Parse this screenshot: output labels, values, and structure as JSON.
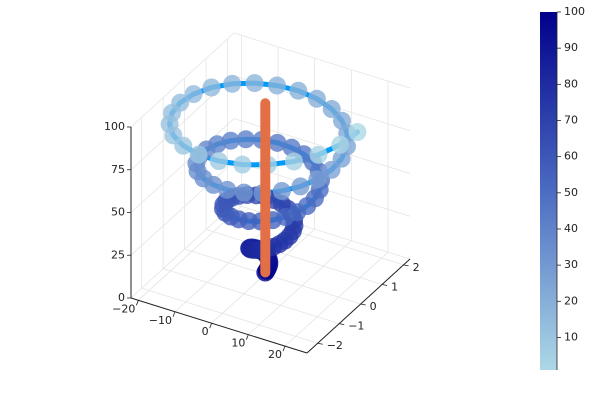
{
  "chart_data": {
    "type": "line3d",
    "xlim": [
      -22,
      26
    ],
    "ylim": [
      -2.5,
      2.3
    ],
    "zlim": [
      0,
      100
    ],
    "xticks": [
      {
        "value": -20,
        "label": "−20"
      },
      {
        "value": -10,
        "label": "−10"
      },
      0,
      10,
      20
    ],
    "yticks": [
      {
        "value": -2,
        "label": "−2"
      },
      {
        "value": -1,
        "label": "−1"
      },
      0,
      1,
      2
    ],
    "zticks": [
      0,
      25,
      50,
      75,
      100
    ],
    "grid": true,
    "colormap": [
      "#add8e6",
      "#4b6cc2",
      "#00008b"
    ],
    "colorbar_lim": [
      1,
      100
    ],
    "colorbar_ticks": [
      10,
      20,
      30,
      40,
      50,
      60,
      70,
      80,
      90,
      100
    ],
    "series": [
      {
        "color": "#009af9",
        "line_width": 5,
        "marker_size": 10,
        "marker_alpha": 0.8,
        "x": [
          0,
          0.25,
          0.44,
          0.55,
          0.54,
          0.38,
          0.07,
          -0.36,
          -0.9,
          -1.5,
          -2.09,
          -2.62,
          -3.03,
          -3.26,
          -3.26,
          -2.99,
          -2.46,
          -1.67,
          -0.65,
          0.53,
          1.81,
          3.09,
          4.28,
          5.27,
          5.98,
          6.33,
          6.27,
          5.77,
          4.82,
          3.48,
          1.8,
          -0.13,
          -2.17,
          -4.19,
          -6.06,
          -7.62,
          -8.77,
          -9.39,
          -9.41,
          -8.8,
          -7.57,
          -5.77,
          -3.49,
          -0.86,
          1.94,
          4.75,
          7.37,
          9.61,
          11.31,
          12.34,
          12.59,
          12.02,
          10.63,
          8.49,
          5.69,
          2.42,
          -1.13,
          -4.73,
          -8.16,
          -11.16,
          -13.54,
          -15.11,
          -15.73,
          -15.35,
          -13.94,
          -11.58,
          -8.38,
          -4.53,
          -0.27,
          4.13,
          8.39,
          12.23,
          15.38,
          17.61,
          18.75,
          18.7,
          17.42,
          14.97,
          11.49,
          7.16,
          2.25,
          -2.93,
          -8.04,
          -12.76,
          -16.76,
          -19.77,
          -21.56,
          -21.99,
          -20.99,
          -18.61,
          -14.96,
          -10.26,
          -4.78,
          1.12,
          7.09,
          12.71,
          17.64,
          21.52,
          24.08,
          25.13
        ],
        "y": [
          0,
          0.01,
          0.02,
          0.05,
          0.09,
          0.12,
          0.15,
          0.17,
          0.18,
          0.17,
          0.14,
          0.1,
          0.03,
          -0.05,
          -0.14,
          -0.24,
          -0.32,
          -0.4,
          -0.45,
          -0.48,
          -0.47,
          -0.43,
          -0.36,
          -0.25,
          -0.12,
          0.04,
          0.21,
          0.37,
          0.52,
          0.65,
          0.74,
          0.79,
          0.78,
          0.73,
          0.62,
          0.46,
          0.26,
          0.03,
          -0.21,
          -0.45,
          -0.68,
          -0.87,
          -1.01,
          -1.09,
          -1.1,
          -1.04,
          -0.91,
          -0.71,
          -0.45,
          -0.16,
          0.16,
          0.48,
          0.78,
          1.04,
          1.25,
          1.38,
          1.42,
          1.37,
          1.23,
          1.0,
          0.7,
          0.34,
          -0.05,
          -0.45,
          -0.83,
          -1.18,
          -1.45,
          -1.64,
          -1.73,
          -1.7,
          -1.57,
          -1.32,
          -0.99,
          -0.58,
          -0.12,
          0.36,
          0.83,
          1.26,
          1.61,
          1.87,
          2.02,
          2.04,
          1.92,
          1.68,
          1.32,
          0.87,
          0.34,
          -0.21,
          -0.76,
          -1.28,
          -1.73,
          -2.07,
          -2.29,
          -2.36,
          -2.28,
          -2.05,
          -1.68,
          -1.2,
          -0.62,
          0
        ],
        "z": [
          1,
          2,
          3,
          4,
          5,
          6,
          7,
          8,
          9,
          10,
          11,
          12,
          13,
          14,
          15,
          16,
          17,
          18,
          19,
          20,
          21,
          22,
          23,
          24,
          25,
          26,
          27,
          28,
          29,
          30,
          31,
          32,
          33,
          34,
          35,
          36,
          37,
          38,
          39,
          40,
          41,
          42,
          43,
          44,
          45,
          46,
          47,
          48,
          49,
          50,
          51,
          52,
          53,
          54,
          55,
          56,
          57,
          58,
          59,
          60,
          61,
          62,
          63,
          64,
          65,
          66,
          67,
          68,
          69,
          70,
          71,
          72,
          73,
          74,
          75,
          76,
          77,
          78,
          79,
          80,
          81,
          82,
          83,
          84,
          85,
          86,
          87,
          88,
          89,
          90,
          91,
          92,
          93,
          94,
          95,
          96,
          97,
          98,
          99,
          100
        ],
        "marker_values": [
          100,
          99,
          98,
          97,
          96,
          95,
          94,
          93,
          92,
          91,
          90,
          89,
          88,
          87,
          86,
          85,
          84,
          83,
          82,
          81,
          80,
          79,
          78,
          77,
          76,
          75,
          74,
          73,
          72,
          71,
          70,
          69,
          68,
          67,
          66,
          65,
          64,
          63,
          62,
          61,
          60,
          59,
          58,
          57,
          56,
          55,
          54,
          53,
          52,
          51,
          50,
          49,
          48,
          47,
          46,
          45,
          44,
          43,
          42,
          41,
          40,
          39,
          38,
          37,
          36,
          35,
          34,
          33,
          32,
          31,
          30,
          29,
          28,
          27,
          26,
          25,
          24,
          23,
          22,
          21,
          20,
          19,
          18,
          17,
          16,
          15,
          14,
          13,
          12,
          11,
          10,
          9,
          8,
          7,
          6,
          5,
          4,
          3,
          2,
          1
        ]
      },
      {
        "color": "#e26f46",
        "line_width": 10,
        "x": [
          0,
          0
        ],
        "y": [
          0,
          0
        ],
        "z": [
          1,
          100
        ]
      }
    ]
  }
}
